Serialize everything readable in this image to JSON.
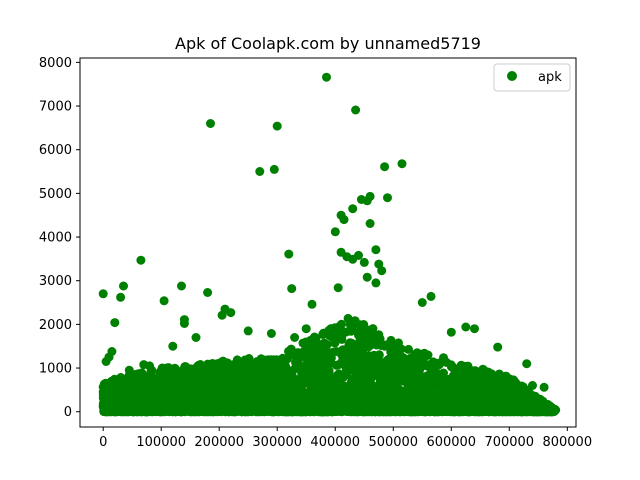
{
  "chart_data": {
    "type": "scatter",
    "title": "Apk of Coolapk.com     by unnamed5719",
    "xlabel": "",
    "ylabel": "",
    "xlim": [
      -40000,
      815000
    ],
    "ylim": [
      -350,
      8100
    ],
    "xticks": [
      0,
      100000,
      200000,
      300000,
      400000,
      500000,
      600000,
      700000,
      800000
    ],
    "xtick_labels": [
      "0",
      "100000",
      "200000",
      "300000",
      "400000",
      "500000",
      "600000",
      "700000",
      "800000"
    ],
    "yticks": [
      0,
      1000,
      2000,
      3000,
      4000,
      5000,
      6000,
      7000,
      8000
    ],
    "ytick_labels": [
      "0",
      "1000",
      "2000",
      "3000",
      "4000",
      "5000",
      "6000",
      "7000",
      "8000"
    ],
    "grid": false,
    "legend_position": "top-right",
    "series": [
      {
        "name": "apk",
        "color": "#008000",
        "marker": "circle",
        "points": [
          [
            0,
            2700
          ],
          [
            5000,
            1150
          ],
          [
            10000,
            1250
          ],
          [
            15000,
            1380
          ],
          [
            20000,
            2040
          ],
          [
            30000,
            2620
          ],
          [
            35000,
            2880
          ],
          [
            65000,
            3470
          ],
          [
            70000,
            1080
          ],
          [
            105000,
            2540
          ],
          [
            135000,
            2880
          ],
          [
            140000,
            2110
          ],
          [
            140000,
            2020
          ],
          [
            180000,
            2730
          ],
          [
            185000,
            6600
          ],
          [
            205000,
            2210
          ],
          [
            210000,
            2350
          ],
          [
            220000,
            2270
          ],
          [
            270000,
            5500
          ],
          [
            295000,
            5550
          ],
          [
            300000,
            6540
          ],
          [
            320000,
            3610
          ],
          [
            325000,
            2820
          ],
          [
            360000,
            2460
          ],
          [
            385000,
            7660
          ],
          [
            400000,
            4120
          ],
          [
            405000,
            2840
          ],
          [
            410000,
            4500
          ],
          [
            415000,
            4400
          ],
          [
            430000,
            4650
          ],
          [
            435000,
            6910
          ],
          [
            445000,
            4860
          ],
          [
            455000,
            4830
          ],
          [
            460000,
            4310
          ],
          [
            460000,
            4930
          ],
          [
            470000,
            3710
          ],
          [
            475000,
            3380
          ],
          [
            480000,
            3230
          ],
          [
            485000,
            5610
          ],
          [
            490000,
            4900
          ],
          [
            515000,
            5680
          ],
          [
            410000,
            3650
          ],
          [
            420000,
            3550
          ],
          [
            430000,
            3490
          ],
          [
            440000,
            3580
          ],
          [
            450000,
            3420
          ],
          [
            455000,
            3080
          ],
          [
            470000,
            2950
          ],
          [
            550000,
            2500
          ],
          [
            565000,
            2640
          ],
          [
            600000,
            1820
          ],
          [
            625000,
            1940
          ],
          [
            640000,
            1900
          ],
          [
            680000,
            1480
          ],
          [
            730000,
            1100
          ],
          [
            740000,
            600
          ],
          [
            760000,
            560
          ],
          [
            770000,
            100
          ],
          [
            780000,
            40
          ],
          [
            250000,
            1850
          ],
          [
            350000,
            1900
          ],
          [
            380000,
            1800
          ],
          [
            330000,
            1700
          ],
          [
            290000,
            1790
          ],
          [
            160000,
            1700
          ],
          [
            120000,
            1500
          ],
          [
            80000,
            1050
          ],
          [
            45000,
            950
          ]
        ]
      }
    ]
  }
}
